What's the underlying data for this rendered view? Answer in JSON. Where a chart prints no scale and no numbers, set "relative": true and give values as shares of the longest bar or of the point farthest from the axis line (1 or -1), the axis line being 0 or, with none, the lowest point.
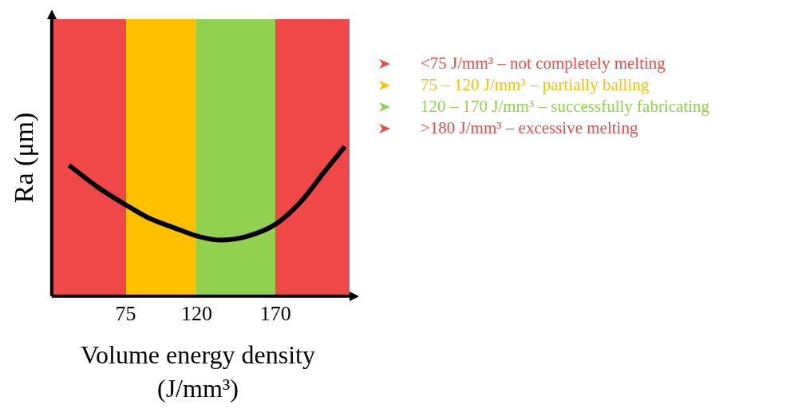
{
  "chart_data": {
    "type": "line",
    "xlabel": "Volume energy density (J/mm³)",
    "ylabel": "Ra (μm)",
    "relative": true,
    "tick_labels": "x",
    "x": [
      39,
      57,
      75,
      90,
      105,
      121,
      135,
      152,
      170,
      186,
      201,
      214
    ],
    "xlim": [
      28,
      217
    ],
    "xticks": [
      75,
      120,
      170
    ],
    "series": [
      {
        "color": "#000000",
        "values": [
          0.875,
          0.73,
          0.61,
          0.52,
          0.46,
          0.4,
          0.375,
          0.4,
          0.48,
          0.63,
          0.83,
          1
        ]
      }
    ],
    "bands": [
      {
        "axis": "x",
        "from": 28,
        "to": 75,
        "label": "<75 J/mm³ – not completely melting",
        "color": "#f04848"
      },
      {
        "axis": "x",
        "from": 75,
        "to": 120,
        "label": "75 – 120 J/mm³ – partially balling",
        "color": "#ffc000"
      },
      {
        "axis": "x",
        "from": 120,
        "to": 170,
        "label": "120 – 170 J/mm³ – successfully fabricating",
        "color": "#92d050"
      },
      {
        "axis": "x",
        "from": 170,
        "to": 217,
        "label": ">180 J/mm³ – excessive melting",
        "color": "#f04848"
      }
    ]
  }
}
